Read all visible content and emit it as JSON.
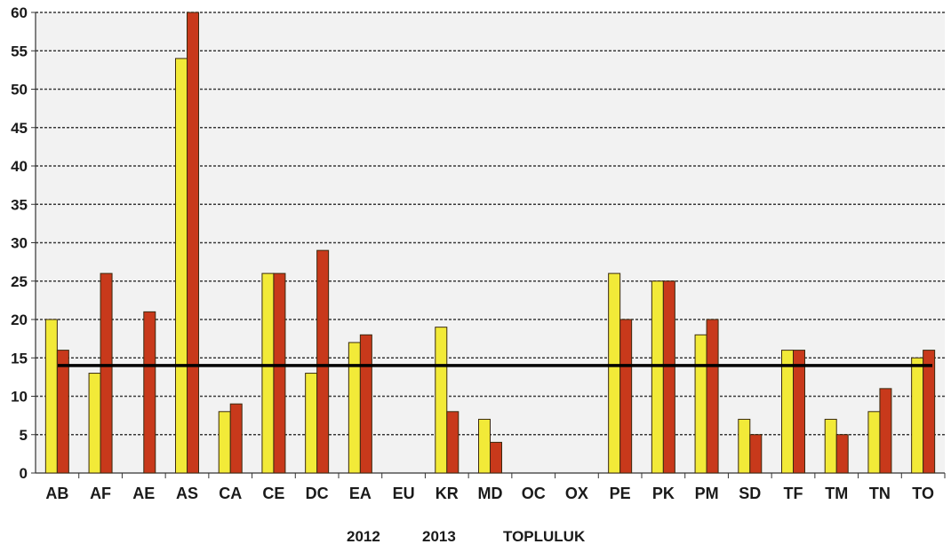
{
  "chart_data": {
    "type": "bar",
    "categories": [
      "AB",
      "AF",
      "AE",
      "AS",
      "CA",
      "CE",
      "DC",
      "EA",
      "EU",
      "KR",
      "MD",
      "OC",
      "OX",
      "PE",
      "PK",
      "PM",
      "SD",
      "TF",
      "TM",
      "TN",
      "TO"
    ],
    "series": [
      {
        "name": "2012",
        "color": "#f2ea38",
        "values": [
          20,
          13,
          0,
          54,
          8,
          26,
          13,
          17,
          0,
          19,
          7,
          0,
          0,
          26,
          25,
          18,
          7,
          16,
          7,
          8,
          15
        ]
      },
      {
        "name": "2013",
        "color": "#c8391b",
        "values": [
          16,
          26,
          21,
          60,
          9,
          26,
          29,
          18,
          0,
          8,
          4,
          0,
          0,
          20,
          25,
          20,
          5,
          16,
          5,
          11,
          16
        ]
      },
      {
        "name": "TOPLULUK",
        "type": "line",
        "color": "#000000",
        "value": 14
      }
    ],
    "yticks": [
      "0",
      "5",
      "10",
      "15",
      "20",
      "25",
      "30",
      "35",
      "40",
      "45",
      "50",
      "55",
      "60"
    ],
    "ylim": [
      0,
      60
    ],
    "grid": true,
    "legend": {
      "placement": "bottom",
      "labels": [
        "2012",
        "2013",
        "TOPLULUK"
      ]
    },
    "plot_background": "#f2f2f2"
  }
}
